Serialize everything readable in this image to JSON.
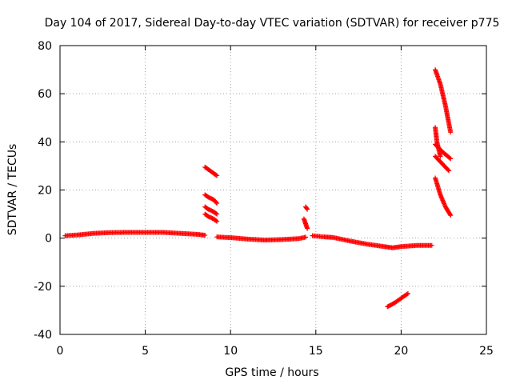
{
  "chart_data": {
    "type": "scatter",
    "title": "Day 104 of 2017, Sidereal Day-to-day VTEC variation (SDTVAR) for receiver p775",
    "xlabel": "GPS time / hours",
    "ylabel": "SDTVAR / TECUs",
    "xlim": [
      0,
      25
    ],
    "ylim": [
      -40,
      80
    ],
    "xticks": [
      0,
      5,
      10,
      15,
      20,
      25
    ],
    "yticks": [
      -40,
      -20,
      0,
      20,
      40,
      60,
      80
    ],
    "grid": true,
    "marker": "+",
    "color": "#ff0000",
    "segments": [
      {
        "x": [
          0.3,
          1.0,
          2.0,
          3.0,
          4.0,
          5.0,
          6.0,
          7.0,
          8.0,
          8.5
        ],
        "y": [
          1.0,
          1.3,
          2.0,
          2.3,
          2.4,
          2.4,
          2.4,
          2.0,
          1.6,
          1.2
        ]
      },
      {
        "x": [
          9.2,
          10.0,
          11.0,
          12.0,
          13.0,
          14.0,
          14.4
        ],
        "y": [
          0.5,
          0.2,
          -0.4,
          -0.8,
          -0.6,
          -0.2,
          0.4
        ]
      },
      {
        "x": [
          14.8,
          15.5,
          16.0,
          17.0,
          18.0,
          19.0,
          19.5,
          20.0,
          21.0,
          21.8
        ],
        "y": [
          1.0,
          0.5,
          0.3,
          -1.2,
          -2.5,
          -3.5,
          -4.0,
          -3.5,
          -3.0,
          -3.0
        ]
      },
      {
        "x": [
          8.5,
          8.7,
          9.0,
          9.2
        ],
        "y": [
          29.5,
          28.5,
          27.0,
          26.0
        ]
      },
      {
        "x": [
          8.5,
          8.7,
          9.0,
          9.2
        ],
        "y": [
          18.0,
          17.0,
          16.0,
          14.5
        ]
      },
      {
        "x": [
          8.5,
          8.7,
          9.0,
          9.2
        ],
        "y": [
          13.0,
          12.0,
          11.0,
          10.0
        ]
      },
      {
        "x": [
          8.5,
          8.7,
          9.0,
          9.2
        ],
        "y": [
          10.0,
          9.0,
          8.0,
          7.0
        ]
      },
      {
        "x": [
          14.4,
          14.5
        ],
        "y": [
          13.0,
          12.0
        ]
      },
      {
        "x": [
          14.3,
          14.4,
          14.5
        ],
        "y": [
          8.0,
          6.0,
          4.0
        ]
      },
      {
        "x": [
          19.2,
          19.6,
          20.0,
          20.4
        ],
        "y": [
          -28.5,
          -27.0,
          -25.0,
          -23.0
        ]
      },
      {
        "x": [
          22.0,
          22.3,
          22.6,
          22.9
        ],
        "y": [
          70.0,
          64.0,
          55.0,
          44.0
        ]
      },
      {
        "x": [
          22.0,
          22.1,
          22.3
        ],
        "y": [
          46.0,
          40.0,
          34.0
        ]
      },
      {
        "x": [
          22.0,
          22.4,
          22.9
        ],
        "y": [
          39.0,
          36.0,
          33.0
        ]
      },
      {
        "x": [
          22.0,
          22.4,
          22.8
        ],
        "y": [
          34.0,
          31.0,
          28.0
        ]
      },
      {
        "x": [
          22.0,
          22.3,
          22.6,
          22.9
        ],
        "y": [
          25.0,
          18.0,
          13.0,
          9.5
        ]
      }
    ]
  }
}
